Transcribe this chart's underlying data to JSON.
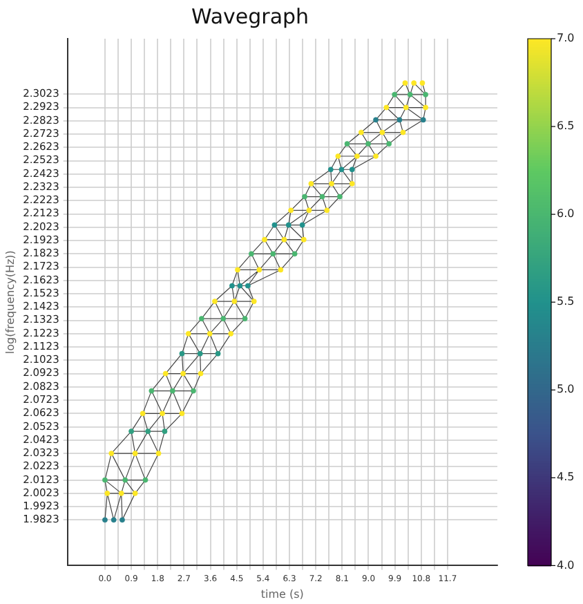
{
  "chart_data": {
    "type": "scatter",
    "title": "Wavegraph",
    "xlabel": "time (s)",
    "ylabel": "log(frequency(Hz))",
    "grid": true,
    "xlim": [
      -1.28,
      13.4
    ],
    "ylim": [
      1.948,
      2.344
    ],
    "xticks": [
      {
        "value": 0,
        "label": "0.0"
      },
      {
        "value": 0.45,
        "label": null
      },
      0.9,
      {
        "value": 1.35,
        "label": null
      },
      1.8,
      {
        "value": 2.25,
        "label": null
      },
      2.7,
      {
        "value": 3.15,
        "label": null
      },
      3.6,
      {
        "value": 4.05,
        "label": null
      },
      4.5,
      {
        "value": 4.95,
        "label": null
      },
      5.4,
      {
        "value": 5.85,
        "label": null
      },
      6.3,
      {
        "value": 6.75,
        "label": null
      },
      7.2,
      {
        "value": 7.65,
        "label": null
      },
      8.1,
      {
        "value": 8.55,
        "label": null
      },
      {
        "value": 9,
        "label": "9.0"
      },
      {
        "value": 9.45,
        "label": null
      },
      9.9,
      {
        "value": 10.35,
        "label": null
      },
      10.8,
      {
        "value": 11.25,
        "label": null
      },
      11.7
    ],
    "yticks": [
      1.9823,
      1.9923,
      2.0023,
      2.0123,
      2.0223,
      2.0323,
      2.0423,
      2.0523,
      2.0623,
      2.0723,
      2.0823,
      2.0923,
      2.1023,
      2.1123,
      2.1223,
      2.1323,
      2.1423,
      2.1523,
      2.1623,
      2.1723,
      2.1823,
      2.1923,
      2.2023,
      2.2123,
      2.2223,
      2.2323,
      2.2423,
      2.2523,
      2.2623,
      2.2723,
      2.2823,
      2.2923,
      2.3023
    ],
    "clim": [
      4,
      7
    ],
    "cticks": [
      {
        "value": 4,
        "label": "4.0"
      },
      4.5,
      {
        "value": 5,
        "label": "5.0"
      },
      5.5,
      {
        "value": 6,
        "label": "6.0"
      },
      6.5,
      {
        "value": 7,
        "label": "7.0"
      }
    ],
    "series": [
      {
        "type": "line",
        "color": "#444444",
        "marker": "none",
        "x": [
          0.0,
          0.08,
          0.3,
          0.56,
          0.59,
          1.03,
          0.08,
          0.0,
          0.56,
          0.69,
          1.03,
          1.38,
          0.0,
          0.22,
          0.69,
          1.03,
          1.38,
          1.83,
          0.22,
          0.9,
          1.03,
          1.47,
          1.83,
          2.04,
          0.9,
          1.29,
          1.47,
          1.96,
          2.04,
          2.63,
          1.29,
          1.59,
          1.96,
          2.31,
          2.63,
          3.02,
          1.59,
          2.07,
          2.31,
          2.67,
          3.02,
          3.27,
          2.07,
          2.63,
          2.67,
          3.25,
          3.27,
          3.86,
          2.63,
          2.85,
          3.25,
          3.58,
          3.86,
          4.3,
          2.85,
          3.3,
          3.58,
          4.04,
          4.3,
          4.78,
          3.3,
          3.75,
          4.04,
          4.42,
          4.78,
          5.09,
          3.75,
          4.34,
          4.42,
          4.61,
          5.09,
          4.88,
          4.34,
          4.53,
          4.61,
          5.27,
          4.88,
          6.0,
          4.53,
          5.0,
          5.27,
          5.74,
          6.0,
          6.48,
          5.0,
          5.45,
          5.74,
          6.12,
          6.48,
          6.79,
          5.45,
          5.79,
          6.12,
          6.27,
          6.79,
          6.74,
          5.79,
          6.35,
          6.27,
          6.97,
          6.74,
          7.58,
          6.35,
          6.82,
          6.97,
          7.42,
          7.58,
          8.02,
          6.82,
          7.04,
          7.42,
          7.74,
          8.02,
          8.44,
          7.04,
          7.71,
          7.74,
          8.08,
          8.44,
          8.44,
          7.71,
          7.96,
          8.08,
          8.61,
          8.44,
          9.25,
          7.96,
          8.27,
          8.61,
          8.99,
          9.25,
          9.7,
          8.27,
          8.75,
          8.99,
          9.47,
          9.7,
          10.18,
          8.75,
          9.25,
          9.47,
          10.06,
          10.18,
          10.87,
          9.25,
          9.61,
          10.06,
          10.28,
          10.87,
          10.95,
          9.61,
          9.89,
          10.28,
          10.42,
          10.95,
          10.95,
          9.89,
          10.25,
          10.42,
          10.55,
          10.95,
          10.84
        ],
        "values": [
          1.9823,
          2.0023,
          1.9823,
          2.0023,
          1.9823,
          2.0023,
          2.0023,
          2.0123,
          2.0023,
          2.0123,
          2.0023,
          2.0123,
          2.0123,
          2.0323,
          2.0123,
          2.0323,
          2.0123,
          2.0323,
          2.0323,
          2.0489,
          2.0323,
          2.0489,
          2.0323,
          2.0489,
          2.0489,
          2.0623,
          2.0489,
          2.0623,
          2.0489,
          2.0623,
          2.0623,
          2.0793,
          2.0623,
          2.0793,
          2.0623,
          2.0793,
          2.0793,
          2.0923,
          2.0793,
          2.0923,
          2.0793,
          2.0923,
          2.0923,
          2.1073,
          2.0923,
          2.1073,
          2.0923,
          2.1073,
          2.1073,
          2.1223,
          2.1073,
          2.1223,
          2.1073,
          2.1223,
          2.1223,
          2.1336,
          2.1223,
          2.1336,
          2.1223,
          2.1336,
          2.1336,
          2.1466,
          2.1336,
          2.1466,
          2.1336,
          2.1466,
          2.1466,
          2.1583,
          2.1466,
          2.1583,
          2.1466,
          2.1583,
          2.1583,
          2.1703,
          2.1583,
          2.1703,
          2.1583,
          2.1703,
          2.1703,
          2.1823,
          2.1703,
          2.1823,
          2.1703,
          2.1823,
          2.1823,
          2.193,
          2.1823,
          2.193,
          2.1823,
          2.193,
          2.193,
          2.204,
          2.193,
          2.204,
          2.193,
          2.204,
          2.204,
          2.215,
          2.204,
          2.215,
          2.204,
          2.215,
          2.215,
          2.2253,
          2.215,
          2.2253,
          2.215,
          2.2253,
          2.2253,
          2.235,
          2.2253,
          2.235,
          2.2253,
          2.235,
          2.235,
          2.2457,
          2.235,
          2.2457,
          2.235,
          2.2457,
          2.2457,
          2.2557,
          2.2457,
          2.2557,
          2.2457,
          2.2557,
          2.2557,
          2.265,
          2.2557,
          2.265,
          2.2557,
          2.265,
          2.265,
          2.2736,
          2.265,
          2.2736,
          2.265,
          2.2736,
          2.2736,
          2.283,
          2.2736,
          2.283,
          2.2736,
          2.283,
          2.283,
          2.2923,
          2.283,
          2.2923,
          2.283,
          2.2923,
          2.2923,
          2.302,
          2.2923,
          2.302,
          2.2923,
          2.302,
          2.302,
          2.3107,
          2.302,
          2.3107,
          2.302,
          2.3107
        ]
      },
      {
        "marker": "circle",
        "colors": [
          "#28808c",
          "#28808c",
          "#28808c",
          "#fde725",
          "#fde725",
          "#fde725",
          "#4ab670",
          "#4ab670",
          "#4ab670",
          "#fde725",
          "#fde725",
          "#fde725",
          "#31a081",
          "#31a081",
          "#31a081",
          "#fde725",
          "#fde725",
          "#fde725",
          "#4ab670",
          "#4ab670",
          "#4ab670",
          "#fde725",
          "#fde725",
          "#fde725",
          "#299886",
          "#299886",
          "#299886",
          "#fde725",
          "#fde725",
          "#fde725",
          "#4ab670",
          "#4ab670",
          "#4ab670",
          "#fde725",
          "#fde725",
          "#fde725",
          "#21918c",
          "#21918c",
          "#21918c",
          "#fde725",
          "#fde725",
          "#fde725",
          "#4ab670",
          "#4ab670",
          "#4ab670",
          "#fde725",
          "#fde725",
          "#fde725",
          "#21918c",
          "#21918c",
          "#21918c",
          "#fde725",
          "#fde725",
          "#fde725",
          "#4ab670",
          "#4ab670",
          "#4ab670",
          "#fde725",
          "#fde725",
          "#fde725",
          "#21918c",
          "#21918c",
          "#21918c",
          "#fde725",
          "#fde725",
          "#fde725",
          "#4ab670",
          "#4ab670",
          "#4ab670",
          "#fde725",
          "#fde725",
          "#fde725",
          "#28808c",
          "#28808c",
          "#28808c",
          "#fde725",
          "#fde725",
          "#fde725",
          "#4ab670",
          "#4ab670",
          "#4ab670",
          "#fde725",
          "#fde725",
          "#fde725"
        ],
        "x": [
          0.0,
          0.3,
          0.59,
          0.08,
          0.56,
          1.03,
          0.0,
          0.69,
          1.38,
          0.22,
          1.03,
          1.83,
          0.9,
          1.47,
          2.04,
          1.29,
          1.96,
          2.63,
          1.59,
          2.31,
          3.02,
          2.07,
          2.67,
          3.27,
          2.63,
          3.25,
          3.86,
          2.85,
          3.58,
          4.3,
          3.3,
          4.04,
          4.78,
          3.75,
          4.42,
          5.09,
          4.34,
          4.61,
          4.88,
          4.53,
          5.27,
          6.0,
          5.0,
          5.74,
          6.48,
          5.45,
          6.12,
          6.79,
          5.79,
          6.27,
          6.74,
          6.35,
          6.97,
          7.58,
          6.82,
          7.42,
          8.02,
          7.04,
          7.74,
          8.44,
          7.71,
          8.08,
          8.44,
          7.96,
          8.61,
          9.25,
          8.27,
          8.99,
          9.7,
          8.75,
          9.47,
          10.18,
          9.25,
          10.06,
          10.87,
          9.61,
          10.28,
          10.95,
          9.89,
          10.42,
          10.95,
          10.25,
          10.55,
          10.84
        ],
        "values": [
          1.9823,
          1.9823,
          1.9823,
          2.0023,
          2.0023,
          2.0023,
          2.0123,
          2.0123,
          2.0123,
          2.0323,
          2.0323,
          2.0323,
          2.0489,
          2.0489,
          2.0489,
          2.0623,
          2.0623,
          2.0623,
          2.0793,
          2.0793,
          2.0793,
          2.0923,
          2.0923,
          2.0923,
          2.1073,
          2.1073,
          2.1073,
          2.1223,
          2.1223,
          2.1223,
          2.1336,
          2.1336,
          2.1336,
          2.1466,
          2.1466,
          2.1466,
          2.1583,
          2.1583,
          2.1583,
          2.1703,
          2.1703,
          2.1703,
          2.1823,
          2.1823,
          2.1823,
          2.193,
          2.193,
          2.193,
          2.204,
          2.204,
          2.204,
          2.215,
          2.215,
          2.215,
          2.2253,
          2.2253,
          2.2253,
          2.235,
          2.235,
          2.235,
          2.2457,
          2.2457,
          2.2457,
          2.2557,
          2.2557,
          2.2557,
          2.265,
          2.265,
          2.265,
          2.2736,
          2.2736,
          2.2736,
          2.283,
          2.283,
          2.283,
          2.2923,
          2.2923,
          2.2923,
          2.302,
          2.302,
          2.302,
          2.3107,
          2.3107,
          2.3107
        ],
        "cvalues": [
          5.3,
          5.3,
          5.3,
          7,
          7,
          7,
          6,
          6,
          6,
          7,
          7,
          7,
          5.7,
          5.7,
          5.7,
          7,
          7,
          7,
          6,
          6,
          6,
          7,
          7,
          7,
          5.6,
          5.6,
          5.6,
          7,
          7,
          7,
          6,
          6,
          6,
          7,
          7,
          7,
          5.5,
          5.5,
          5.5,
          7,
          7,
          7,
          6,
          6,
          6,
          7,
          7,
          7,
          5.5,
          5.5,
          5.5,
          7,
          7,
          7,
          6,
          6,
          6,
          7,
          7,
          7,
          5.5,
          5.5,
          5.5,
          7,
          7,
          7,
          6,
          6,
          6,
          7,
          7,
          7,
          5.3,
          5.3,
          5.3,
          7,
          7,
          7,
          6,
          6,
          6,
          7,
          7,
          7
        ]
      }
    ]
  }
}
